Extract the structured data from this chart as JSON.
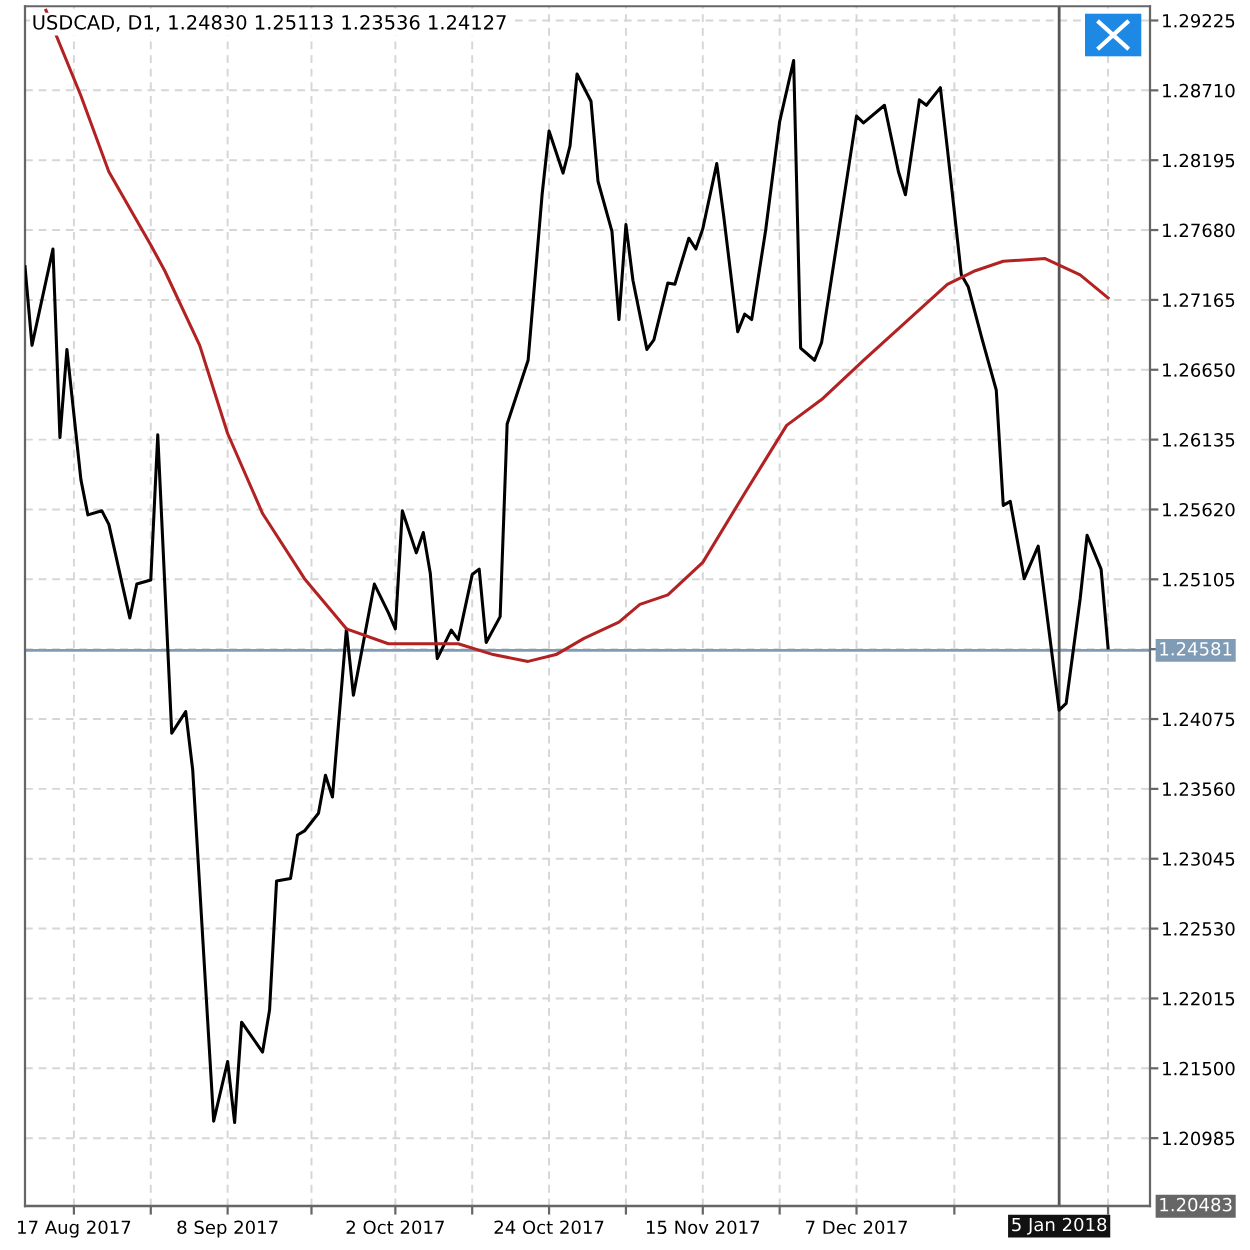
{
  "chart_data": {
    "type": "line",
    "title": "USDCAD, D1, 1.24830 1.25113 1.23536 1.24127",
    "series": [
      {
        "color": "#000000",
        "x": [
          "2017-08-10",
          "2017-08-11",
          "2017-08-14",
          "2017-08-15",
          "2017-08-16",
          "2017-08-18",
          "2017-08-19",
          "2017-08-21",
          "2017-08-22",
          "2017-08-25",
          "2017-08-26",
          "2017-08-28",
          "2017-08-29",
          "2017-08-31",
          "2017-09-02",
          "2017-09-03",
          "2017-09-06",
          "2017-09-08",
          "2017-09-09",
          "2017-09-10",
          "2017-09-13",
          "2017-09-14",
          "2017-09-15",
          "2017-09-17",
          "2017-09-18",
          "2017-09-19",
          "2017-09-21",
          "2017-09-22",
          "2017-09-23",
          "2017-09-25",
          "2017-09-26",
          "2017-09-29",
          "2017-10-01",
          "2017-10-02",
          "2017-10-03",
          "2017-10-05",
          "2017-10-06",
          "2017-10-07",
          "2017-10-08",
          "2017-10-10",
          "2017-10-11",
          "2017-10-13",
          "2017-10-14",
          "2017-10-15",
          "2017-10-17",
          "2017-10-18",
          "2017-10-21",
          "2017-10-23",
          "2017-10-24",
          "2017-10-26",
          "2017-10-27",
          "2017-10-28",
          "2017-10-30",
          "2017-10-31",
          "2017-11-02",
          "2017-11-03",
          "2017-11-04",
          "2017-11-05",
          "2017-11-07",
          "2017-11-08",
          "2017-11-10",
          "2017-11-11",
          "2017-11-13",
          "2017-11-14",
          "2017-11-15",
          "2017-11-17",
          "2017-11-18",
          "2017-11-20",
          "2017-11-21",
          "2017-11-22",
          "2017-11-24",
          "2017-11-26",
          "2017-11-28",
          "2017-11-29",
          "2017-12-01",
          "2017-12-02",
          "2017-12-07",
          "2017-12-08",
          "2017-12-11",
          "2017-12-13",
          "2017-12-14",
          "2017-12-16",
          "2017-12-17",
          "2017-12-19",
          "2017-12-20",
          "2017-12-22",
          "2017-12-23",
          "2017-12-25",
          "2017-12-27",
          "2017-12-28",
          "2017-12-29",
          "2017-12-31",
          "2018-01-02",
          "2018-01-05",
          "2018-01-06",
          "2018-01-08",
          "2018-01-09",
          "2018-01-11",
          "2018-01-12"
        ],
        "values": [
          1.2741,
          1.2683,
          1.2754,
          1.2615,
          1.268,
          1.2584,
          1.2558,
          1.2561,
          1.2551,
          1.2482,
          1.2507,
          1.251,
          1.2617,
          1.2397,
          1.2413,
          1.237,
          1.2111,
          1.2155,
          1.211,
          1.2184,
          1.2162,
          1.2193,
          1.2288,
          1.229,
          1.2322,
          1.2325,
          1.2338,
          1.2366,
          1.235,
          1.2474,
          1.2425,
          1.2507,
          1.2486,
          1.2474,
          1.2561,
          1.253,
          1.2545,
          1.2515,
          1.2452,
          1.2473,
          1.2466,
          1.2514,
          1.2518,
          1.2464,
          1.2483,
          1.2625,
          1.2672,
          1.2794,
          1.2841,
          1.281,
          1.283,
          1.2883,
          1.2863,
          1.2804,
          1.2767,
          1.2702,
          1.2772,
          1.2731,
          1.268,
          1.2687,
          1.2729,
          1.2728,
          1.2762,
          1.2754,
          1.2769,
          1.2817,
          1.2778,
          1.2693,
          1.2706,
          1.2702,
          1.2768,
          1.2848,
          1.2893,
          1.2681,
          1.2672,
          1.2685,
          1.2852,
          1.2847,
          1.286,
          1.2811,
          1.2794,
          1.2864,
          1.286,
          1.2873,
          1.2828,
          1.2735,
          1.2726,
          1.2687,
          1.265,
          1.2565,
          1.2568,
          1.2511,
          1.2535,
          1.2414,
          1.2419,
          1.2496,
          1.2543,
          1.2518,
          1.246
        ]
      },
      {
        "color": "#b22222",
        "x": [
          "2017-08-13",
          "2017-08-18",
          "2017-08-22",
          "2017-08-28",
          "2017-08-30",
          "2017-09-04",
          "2017-09-08",
          "2017-09-13",
          "2017-09-19",
          "2017-09-25",
          "2017-10-01",
          "2017-10-06",
          "2017-10-11",
          "2017-10-16",
          "2017-10-21",
          "2017-10-25",
          "2017-10-29",
          "2017-11-03",
          "2017-11-06",
          "2017-11-10",
          "2017-11-15",
          "2017-11-21",
          "2017-11-27",
          "2017-12-02",
          "2017-12-08",
          "2017-12-14",
          "2017-12-20",
          "2017-12-24",
          "2017-12-28",
          "2018-01-03",
          "2018-01-08",
          "2018-01-12"
        ],
        "values": [
          1.293,
          1.2867,
          1.2811,
          1.2757,
          1.2738,
          1.2683,
          1.2618,
          1.2559,
          1.2511,
          1.2474,
          1.2463,
          1.2463,
          1.2463,
          1.2455,
          1.245,
          1.2455,
          1.2467,
          1.2479,
          1.2492,
          1.2499,
          1.2523,
          1.2574,
          1.2624,
          1.2643,
          1.2672,
          1.27,
          1.2728,
          1.2738,
          1.2745,
          1.2747,
          1.2735,
          1.2718
        ]
      }
    ],
    "xlim": [
      "2017-08-10",
      "2018-01-18"
    ],
    "xticks": [
      {
        "value": "2017-08-17",
        "label": "17 Aug 2017"
      },
      {
        "value": "2017-08-28",
        "label": null
      },
      {
        "value": "2017-09-08",
        "label": "8 Sep 2017"
      },
      {
        "value": "2017-09-20",
        "label": null
      },
      {
        "value": "2017-10-02",
        "label": "2 Oct 2017"
      },
      {
        "value": "2017-10-13",
        "label": null
      },
      {
        "value": "2017-10-24",
        "label": "24 Oct 2017"
      },
      {
        "value": "2017-11-04",
        "label": null
      },
      {
        "value": "2017-11-15",
        "label": "15 Nov 2017"
      },
      {
        "value": "2017-11-26",
        "label": null
      },
      {
        "value": "2017-12-07",
        "label": "7 Dec 2017"
      },
      {
        "value": "2017-12-21",
        "label": null
      },
      {
        "value": "2018-01-12",
        "label": null
      }
    ],
    "ylim": [
      1.20483,
      1.2933
    ],
    "yticks": [
      {
        "value": 1.20985,
        "label": "1.20985"
      },
      {
        "value": 1.215,
        "label": "1.21500"
      },
      {
        "value": 1.22015,
        "label": "1.22015"
      },
      {
        "value": 1.2253,
        "label": "1.22530"
      },
      {
        "value": 1.23045,
        "label": "1.23045"
      },
      {
        "value": 1.2356,
        "label": "1.23560"
      },
      {
        "value": 1.24075,
        "label": "1.24075"
      },
      {
        "value": 1.2459,
        "label": null
      },
      {
        "value": 1.25105,
        "label": "1.25105"
      },
      {
        "value": 1.2562,
        "label": "1.25620"
      },
      {
        "value": 1.26135,
        "label": "1.26135"
      },
      {
        "value": 1.2665,
        "label": "1.26650"
      },
      {
        "value": 1.27165,
        "label": "1.27165"
      },
      {
        "value": 1.2768,
        "label": "1.27680"
      },
      {
        "value": 1.28195,
        "label": "1.28195"
      },
      {
        "value": 1.2871,
        "label": "1.28710"
      },
      {
        "value": 1.29225,
        "label": "1.29225"
      }
    ],
    "ref_lines": [
      {
        "axis": "y",
        "value": 1.24581,
        "label": "1.24581",
        "color": "#7f9bb5"
      },
      {
        "axis": "x",
        "value": "2018-01-05",
        "label": "5 Jan 2018",
        "color": "#555555"
      },
      {
        "axis": "y",
        "value": 1.20483,
        "label": "1.20483",
        "color": "#666666"
      }
    ],
    "grid": true,
    "marker": "none",
    "line_style": "solid"
  }
}
